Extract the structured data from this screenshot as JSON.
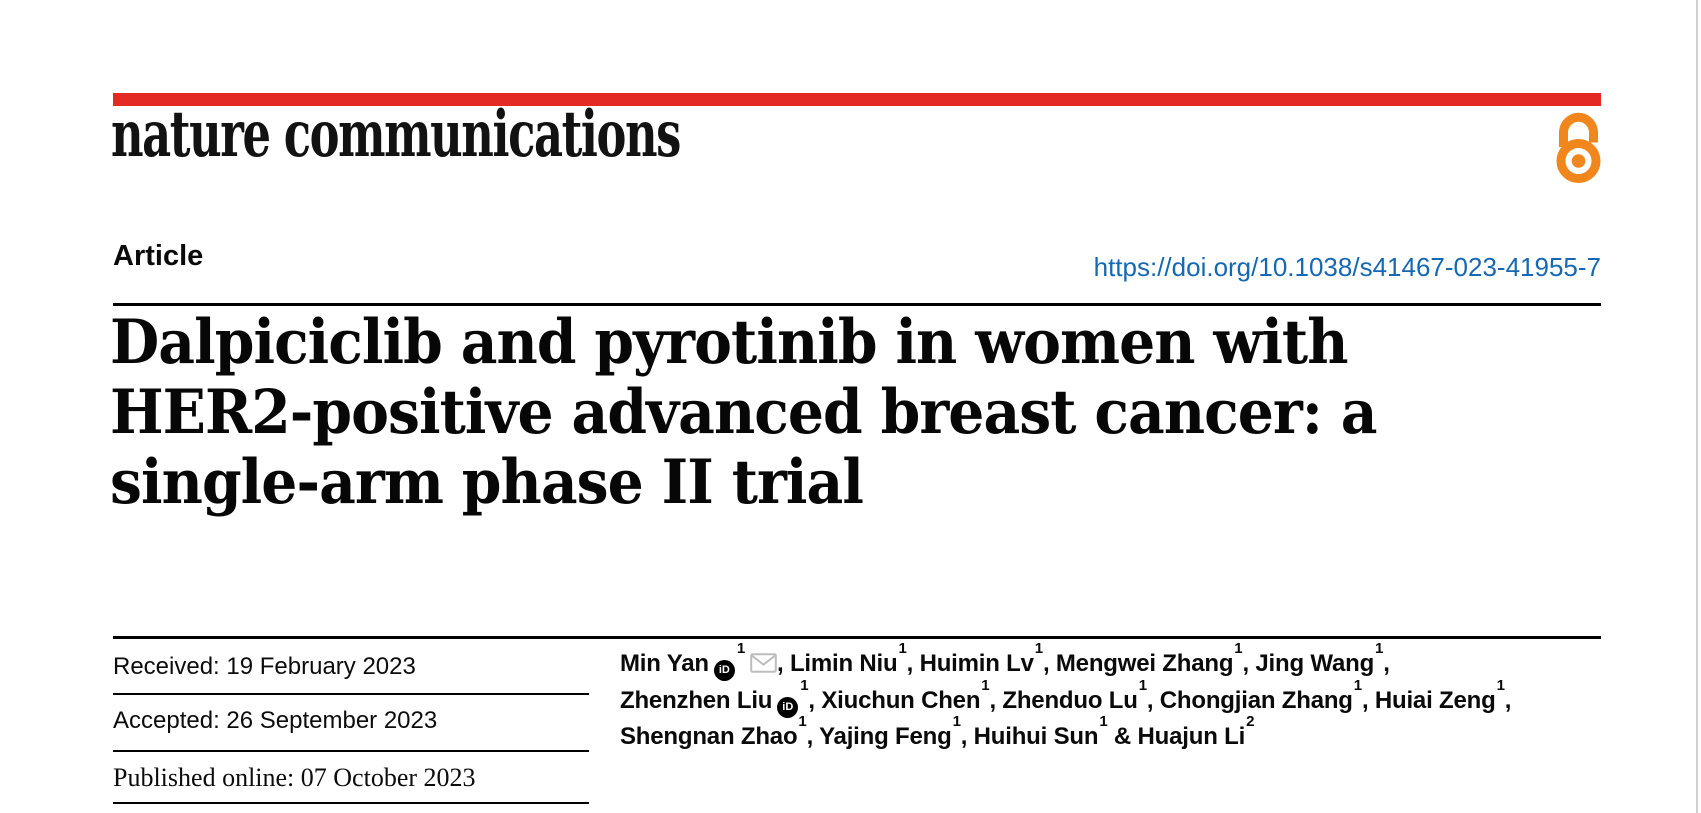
{
  "journal": {
    "logo_text": "nature communications",
    "brand_red": "#e32b23",
    "open_access_orange": "#f0861c",
    "open_access_icon": "open-lock"
  },
  "article": {
    "type_label": "Article",
    "doi_link": "https://doi.org/10.1038/s41467-023-41955-7",
    "doi_color": "#1568b3",
    "title_line1": "Dalpiciclib and pyrotinib in women with",
    "title_line2": "HER2-positive advanced breast cancer: a",
    "title_line3": "single-arm phase II trial"
  },
  "dates": {
    "received": "Received: 19 February 2023",
    "accepted": "Accepted: 26 September 2023",
    "published": "Published online: 07 October 2023"
  },
  "icons": {
    "orcid": "iD",
    "email": "envelope",
    "open_access": "open-lock"
  },
  "authors": {
    "orcid_icon_label": "iD",
    "lines": [
      [
        {
          "name": "Min Yan",
          "orcid": true,
          "sup": "1",
          "mail": true,
          "after": ", "
        },
        {
          "name": "Limin Niu",
          "sup": "1",
          "after": ", "
        },
        {
          "name": "Huimin Lv",
          "sup": "1",
          "after": ", "
        },
        {
          "name": "Mengwei Zhang",
          "sup": "1",
          "after": ", "
        },
        {
          "name": "Jing Wang",
          "sup": "1",
          "after": ","
        }
      ],
      [
        {
          "name": "Zhenzhen Liu",
          "orcid": true,
          "sup": "1",
          "after": ", "
        },
        {
          "name": "Xiuchun Chen",
          "sup": "1",
          "after": ", "
        },
        {
          "name": "Zhenduo Lu",
          "sup": "1",
          "after": ", "
        },
        {
          "name": "Chongjian Zhang",
          "sup": "1",
          "after": ", "
        },
        {
          "name": "Huiai Zeng",
          "sup": "1",
          "after": ","
        }
      ],
      [
        {
          "name": "Shengnan Zhao",
          "sup": "1",
          "after": ", "
        },
        {
          "name": "Yajing Feng",
          "sup": "1",
          "after": ", "
        },
        {
          "name": "Huihui Sun",
          "sup": "1",
          "after": " & "
        },
        {
          "name": "Huajun Li",
          "sup": "2",
          "after": ""
        }
      ]
    ]
  }
}
